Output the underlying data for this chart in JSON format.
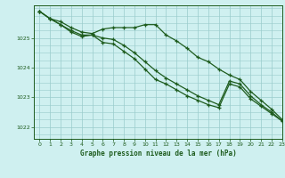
{
  "title": "Graphe pression niveau de la mer (hPa)",
  "bg_color": "#cff0f0",
  "grid_color": "#99cccc",
  "line_color": "#1e5c1e",
  "xlim": [
    -0.5,
    23
  ],
  "ylim": [
    1021.6,
    1026.1
  ],
  "yticks": [
    1022,
    1023,
    1024,
    1025
  ],
  "xticks": [
    0,
    1,
    2,
    3,
    4,
    5,
    6,
    7,
    8,
    9,
    10,
    11,
    12,
    13,
    14,
    15,
    16,
    17,
    18,
    19,
    20,
    21,
    22,
    23
  ],
  "series": [
    [
      1025.9,
      1025.65,
      1025.55,
      1025.35,
      1025.2,
      1025.15,
      1025.3,
      1025.35,
      1025.35,
      1025.35,
      1025.45,
      1025.45,
      1025.1,
      1024.9,
      1024.65,
      1024.35,
      1024.2,
      1023.95,
      1023.75,
      1023.6,
      1023.2,
      1022.9,
      1022.6,
      1022.25
    ],
    [
      1025.9,
      1025.65,
      1025.45,
      1025.2,
      1025.05,
      1025.1,
      1024.85,
      1024.8,
      1024.55,
      1024.3,
      1023.95,
      1023.6,
      1023.45,
      1023.25,
      1023.05,
      1022.9,
      1022.75,
      1022.65,
      1023.45,
      1023.35,
      1022.95,
      1022.7,
      1022.45,
      1022.2
    ],
    [
      1025.9,
      1025.65,
      1025.45,
      1025.25,
      1025.1,
      1025.1,
      1025.0,
      1024.95,
      1024.75,
      1024.5,
      1024.2,
      1023.9,
      1023.65,
      1023.45,
      1023.25,
      1023.05,
      1022.9,
      1022.75,
      1023.55,
      1023.45,
      1023.05,
      1022.75,
      1022.5,
      1022.2
    ]
  ]
}
